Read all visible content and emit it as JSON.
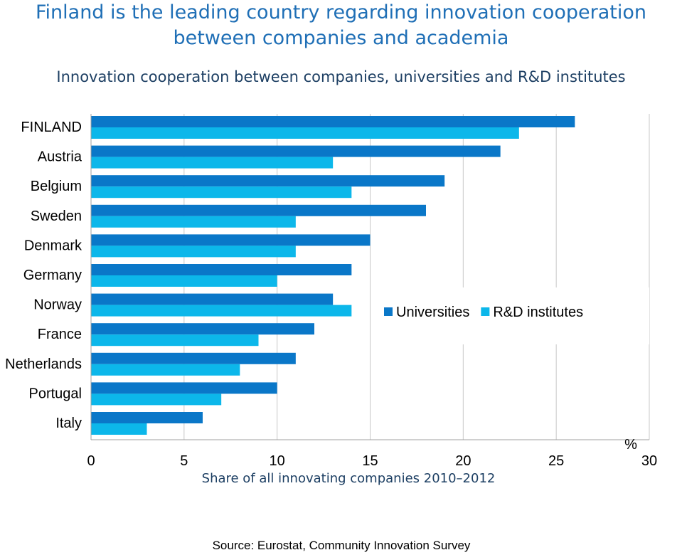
{
  "title_line1": "Finland is the leading country regarding innovation cooperation",
  "title_line2": "between companies and academia",
  "subtitle": "Innovation cooperation between companies, universities and R&D institutes",
  "source": "Source: Eurostat, Community Innovation Survey",
  "chart_data": {
    "type": "bar",
    "orientation": "horizontal",
    "categories": [
      "FINLAND",
      "Austria",
      "Belgium",
      "Sweden",
      "Denmark",
      "Germany",
      "Norway",
      "France",
      "Netherlands",
      "Portugal",
      "Italy"
    ],
    "series": [
      {
        "name": "Universities",
        "color": "#0a77c8",
        "values": [
          26,
          22,
          19,
          18,
          15,
          14,
          13,
          12,
          11,
          10,
          6
        ]
      },
      {
        "name": "R&D institutes",
        "color": "#0cb7ea",
        "values": [
          23,
          13,
          14,
          11,
          11,
          10,
          14,
          9,
          8,
          7,
          3
        ]
      }
    ],
    "xlabel": "Share of all innovating companies 2010–2012",
    "unit_label": "%",
    "xlim": [
      0,
      30
    ],
    "xticks": [
      0,
      5,
      10,
      15,
      20,
      25,
      30
    ],
    "grid": true,
    "legend_position": "right"
  }
}
